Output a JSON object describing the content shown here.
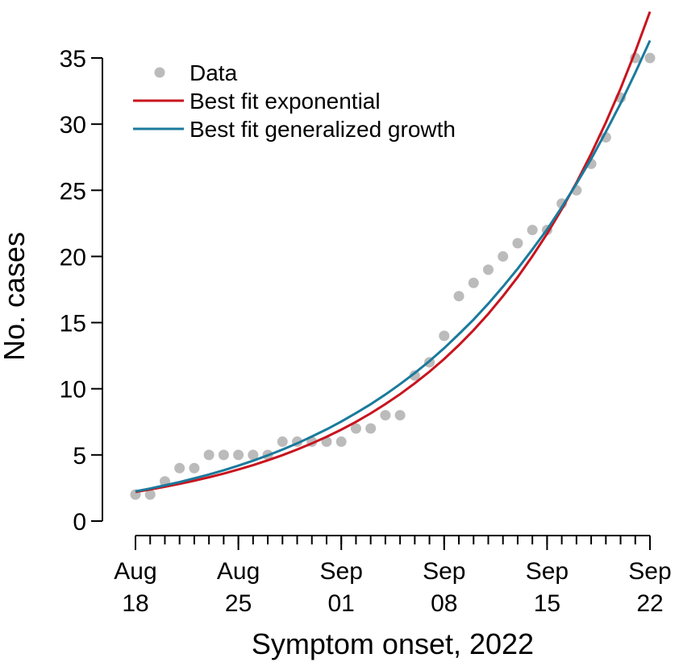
{
  "chart_data": {
    "type": "line",
    "x_label": "Symptom onset, 2022",
    "y_label": "No. cases",
    "x": [
      "2022-08-18",
      "2022-08-19",
      "2022-08-20",
      "2022-08-21",
      "2022-08-22",
      "2022-08-23",
      "2022-08-24",
      "2022-08-25",
      "2022-08-26",
      "2022-08-27",
      "2022-08-28",
      "2022-08-29",
      "2022-08-30",
      "2022-08-31",
      "2022-09-01",
      "2022-09-02",
      "2022-09-03",
      "2022-09-04",
      "2022-09-05",
      "2022-09-06",
      "2022-09-07",
      "2022-09-08",
      "2022-09-09",
      "2022-09-10",
      "2022-09-11",
      "2022-09-12",
      "2022-09-13",
      "2022-09-14",
      "2022-09-15",
      "2022-09-16",
      "2022-09-17",
      "2022-09-18",
      "2022-09-19",
      "2022-09-20",
      "2022-09-21",
      "2022-09-22"
    ],
    "series": [
      {
        "name": "Data",
        "style": "points",
        "color": "#bbbbbb",
        "values": [
          2,
          2,
          3,
          4,
          4,
          5,
          5,
          5,
          5,
          5,
          6,
          6,
          6,
          6,
          6,
          7,
          7,
          8,
          8,
          11,
          12,
          14,
          17,
          18,
          19,
          20,
          21,
          22,
          22,
          24,
          25,
          27,
          29,
          32,
          35,
          35
        ]
      },
      {
        "name": "Best fit exponential",
        "style": "line",
        "color": "#c8141e",
        "values": [
          2.2,
          2.39,
          2.59,
          2.81,
          3.05,
          3.31,
          3.59,
          3.9,
          4.23,
          4.59,
          4.98,
          5.41,
          5.87,
          6.37,
          6.91,
          7.5,
          8.14,
          8.84,
          9.59,
          10.41,
          11.29,
          12.25,
          13.3,
          14.43,
          15.66,
          17.0,
          18.44,
          20.02,
          21.72,
          23.57,
          25.58,
          27.76,
          30.13,
          32.69,
          35.48,
          38.5
        ]
      },
      {
        "name": "Best fit generalized growth",
        "style": "line",
        "color": "#1a7a9c",
        "values": [
          2.25,
          2.46,
          2.7,
          2.95,
          3.23,
          3.52,
          3.84,
          4.19,
          4.56,
          4.97,
          5.4,
          5.87,
          6.39,
          6.93,
          7.52,
          8.16,
          8.83,
          9.56,
          10.35,
          11.19,
          12.09,
          13.07,
          14.13,
          15.23,
          16.43,
          17.72,
          19.07,
          20.53,
          22.04,
          23.73,
          25.5,
          27.37,
          29.42,
          31.56,
          33.88,
          36.32
        ]
      }
    ],
    "xlim": [
      "2022-08-18",
      "2022-09-22"
    ],
    "xticks": [
      {
        "value": "2022-08-18",
        "label": "Aug 18"
      },
      {
        "value": "2022-08-25",
        "label": "Aug 25"
      },
      {
        "value": "2022-09-01",
        "label": "Sep 01"
      },
      {
        "value": "2022-09-08",
        "label": "Sep 08"
      },
      {
        "value": "2022-09-15",
        "label": "Sep 15"
      },
      {
        "value": "2022-09-22",
        "label": "Sep 22"
      }
    ],
    "ylim": [
      0,
      35
    ],
    "yticks": [
      0,
      5,
      10,
      15,
      20,
      25,
      30,
      35
    ],
    "legend": "top-left"
  }
}
